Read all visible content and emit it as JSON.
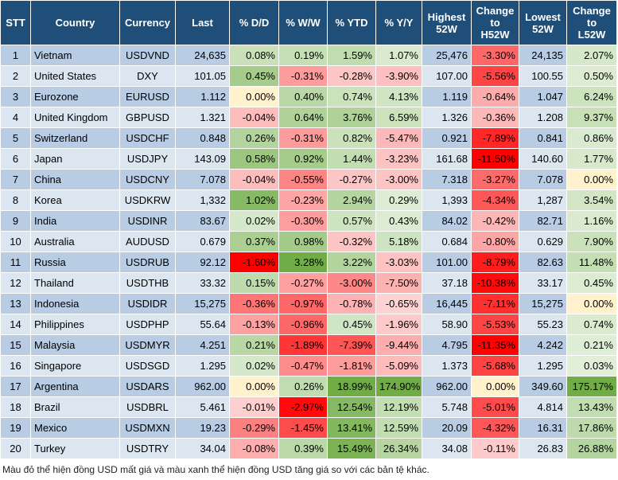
{
  "table": {
    "header": [
      "STT",
      "Country",
      "Currency",
      "Last",
      "% D/D",
      "% W/W",
      "% YTD",
      "% Y/Y",
      "Highest\n52W",
      "Change\nto\nH52W",
      "Lowest\n52W",
      "Change\nto\nL52W"
    ],
    "rows": [
      [
        "1",
        "Vietnam",
        "USDVND",
        "24,635",
        "0.08%",
        "0.19%",
        "1.59%",
        "1.07%",
        "25,476",
        "-3.30%",
        "24,135",
        "2.07%"
      ],
      [
        "2",
        "United States",
        "DXY",
        "101.05",
        "0.45%",
        "-0.31%",
        "-0.28%",
        "-3.90%",
        "107.00",
        "-5.56%",
        "100.55",
        "0.50%"
      ],
      [
        "3",
        "Eurozone",
        "EURUSD",
        "1.112",
        "0.00%",
        "0.40%",
        "0.74%",
        "4.13%",
        "1.119",
        "-0.64%",
        "1.047",
        "6.24%"
      ],
      [
        "4",
        "United Kingdom",
        "GBPUSD",
        "1.321",
        "-0.04%",
        "0.64%",
        "3.76%",
        "6.59%",
        "1.326",
        "-0.36%",
        "1.208",
        "9.37%"
      ],
      [
        "5",
        "Switzerland",
        "USDCHF",
        "0.848",
        "0.26%",
        "-0.31%",
        "0.82%",
        "-5.47%",
        "0.921",
        "-7.89%",
        "0.841",
        "0.86%"
      ],
      [
        "6",
        "Japan",
        "USDJPY",
        "143.09",
        "0.58%",
        "0.92%",
        "1.44%",
        "-3.23%",
        "161.68",
        "-11.50%",
        "140.60",
        "1.77%"
      ],
      [
        "7",
        "China",
        "USDCNY",
        "7.078",
        "-0.04%",
        "-0.55%",
        "-0.27%",
        "-3.00%",
        "7.318",
        "-3.27%",
        "7.078",
        "0.00%"
      ],
      [
        "8",
        "Korea",
        "USDKRW",
        "1,332",
        "1.02%",
        "-0.23%",
        "2.94%",
        "0.29%",
        "1,393",
        "-4.34%",
        "1,287",
        "3.54%"
      ],
      [
        "9",
        "India",
        "USDINR",
        "83.67",
        "0.02%",
        "-0.30%",
        "0.57%",
        "0.43%",
        "84.02",
        "-0.42%",
        "82.71",
        "1.16%"
      ],
      [
        "10",
        "Australia",
        "AUDUSD",
        "0.679",
        "0.37%",
        "0.98%",
        "-0.32%",
        "5.18%",
        "0.684",
        "-0.80%",
        "0.629",
        "7.90%"
      ],
      [
        "11",
        "Russia",
        "USDRUB",
        "92.12",
        "-1.60%",
        "3.28%",
        "3.22%",
        "-3.03%",
        "101.00",
        "-8.79%",
        "82.63",
        "11.48%"
      ],
      [
        "12",
        "Thailand",
        "USDTHB",
        "33.32",
        "0.15%",
        "-0.27%",
        "-3.00%",
        "-7.50%",
        "37.18",
        "-10.38%",
        "33.17",
        "0.45%"
      ],
      [
        "13",
        "Indonesia",
        "USDIDR",
        "15,275",
        "-0.36%",
        "-0.97%",
        "-0.78%",
        "-0.65%",
        "16,445",
        "-7.11%",
        "15,275",
        "0.00%"
      ],
      [
        "14",
        "Philippines",
        "USDPHP",
        "55.64",
        "-0.13%",
        "-0.96%",
        "0.45%",
        "-1.96%",
        "58.90",
        "-5.53%",
        "55.23",
        "0.74%"
      ],
      [
        "15",
        "Malaysia",
        "USDMYR",
        "4.251",
        "0.21%",
        "-1.89%",
        "-7.39%",
        "-9.44%",
        "4.795",
        "-11.35%",
        "4.242",
        "0.21%"
      ],
      [
        "16",
        "Singapore",
        "USDSGD",
        "1.295",
        "0.02%",
        "-0.47%",
        "-1.81%",
        "-5.09%",
        "1.373",
        "-5.68%",
        "1.295",
        "0.03%"
      ],
      [
        "17",
        "Argentina",
        "USDARS",
        "962.00",
        "0.00%",
        "0.26%",
        "18.99%",
        "174.90%",
        "962.00",
        "0.00%",
        "349.60",
        "175.17%"
      ],
      [
        "18",
        "Brazil",
        "USDBRL",
        "5.461",
        "-0.01%",
        "-2.97%",
        "12.54%",
        "12.19%",
        "5.748",
        "-5.01%",
        "4.814",
        "13.43%"
      ],
      [
        "19",
        "Mexico",
        "USDMXN",
        "19.23",
        "-0.29%",
        "-1.45%",
        "13.41%",
        "12.59%",
        "20.09",
        "-4.32%",
        "16.31",
        "17.86%"
      ],
      [
        "20",
        "Turkey",
        "USDTRY",
        "34.04",
        "-0.08%",
        "0.39%",
        "15.49%",
        "26.34%",
        "34.08",
        "-0.11%",
        "26.83",
        "26.88%"
      ]
    ]
  },
  "footer": "Màu đỏ thể hiện đồng USD mất giá và màu xanh thể hiện đồng USD tăng giá so với các bản tệ khác."
}
